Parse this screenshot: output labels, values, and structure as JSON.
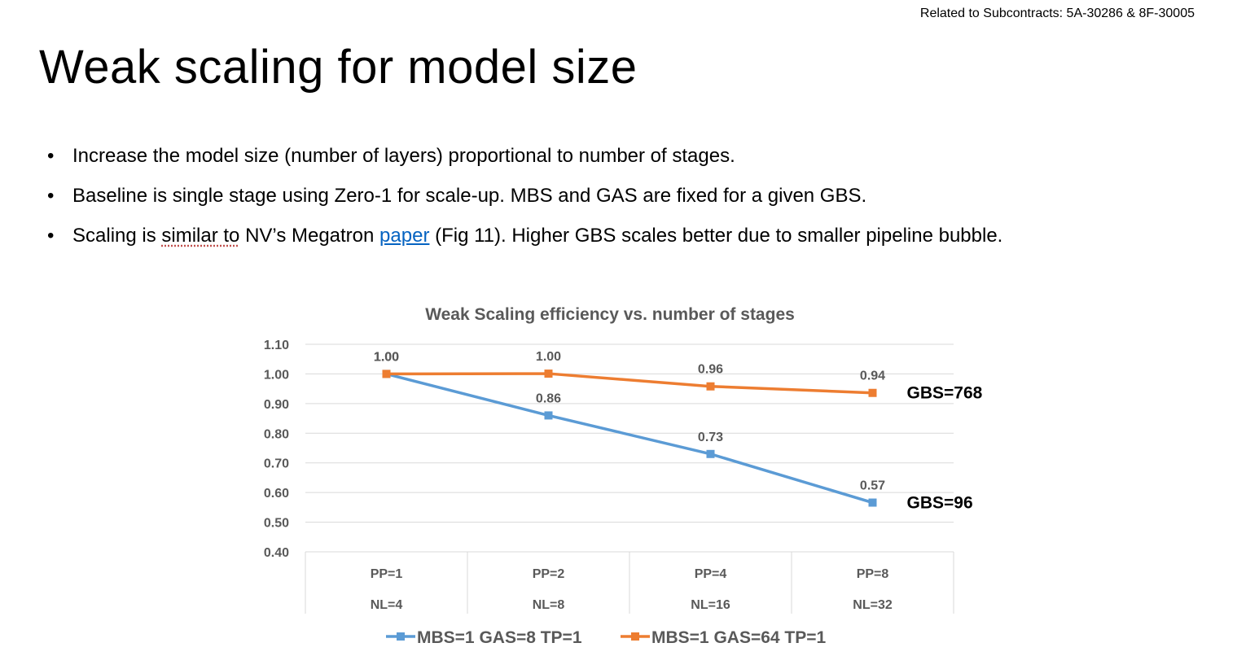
{
  "header_note": "Related to Subcontracts:  5A-30286 & 8F-30005",
  "slide_title": "Weak scaling for model size",
  "bullets": {
    "b1": "Increase the model size (number of layers) proportional to number of stages.",
    "b2": "Baseline is single stage using Zero-1 for scale-up. MBS and GAS are fixed for a given GBS.",
    "b3_prefix": "Scaling is ",
    "b3_squiggle": "similar to",
    "b3_mid": " NV’s Megatron ",
    "b3_link": "paper",
    "b3_suffix": " (Fig 11). Higher GBS scales better due to smaller pipeline bubble."
  },
  "chart_data": {
    "type": "line",
    "title": "Weak Scaling efficiency vs. number of stages",
    "categories": [
      [
        "PP=1",
        "NL=4"
      ],
      [
        "PP=2",
        "NL=8"
      ],
      [
        "PP=4",
        "NL=16"
      ],
      [
        "PP=8",
        "NL=32"
      ]
    ],
    "ylim": [
      0.4,
      1.1
    ],
    "yticks": [
      "0.40",
      "0.50",
      "0.60",
      "0.70",
      "0.80",
      "0.90",
      "1.00",
      "1.10"
    ],
    "grid": true,
    "legend_position": "bottom",
    "series": [
      {
        "name": "MBS=1 GAS=8 TP=1",
        "color": "#5b9bd5",
        "values": [
          1.0,
          0.86,
          0.73,
          0.566
        ],
        "labels": [
          "1.00",
          "0.86",
          "0.73",
          "0.57"
        ],
        "end_annotation": "GBS=96"
      },
      {
        "name": "MBS=1 GAS=64 TP=1",
        "color": "#ed7d31",
        "values": [
          1.0,
          1.001,
          0.958,
          0.936
        ],
        "labels": [
          "1.00",
          "1.00",
          "0.96",
          "0.94"
        ],
        "end_annotation": "GBS=768"
      }
    ]
  }
}
